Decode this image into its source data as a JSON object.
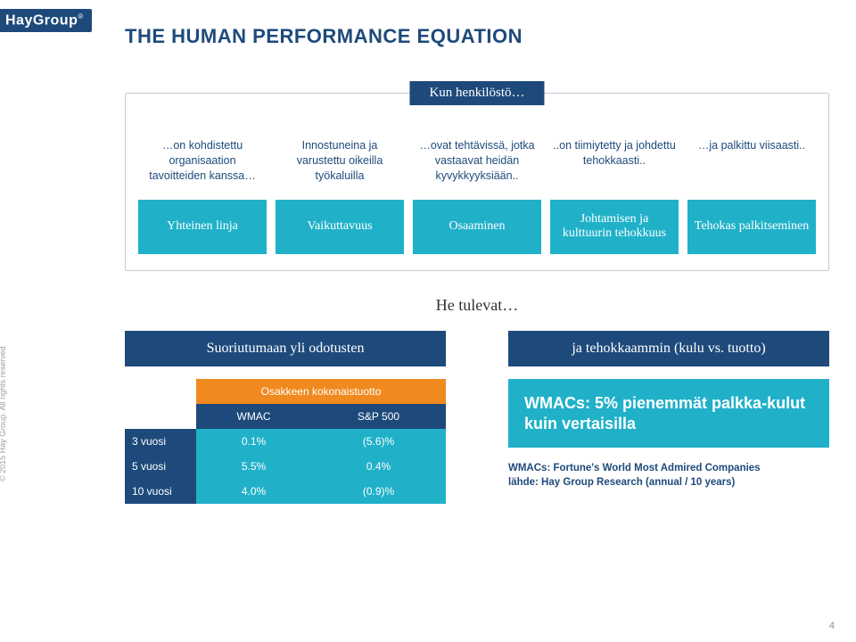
{
  "brand": {
    "name": "HayGroup",
    "reg": "®"
  },
  "copyright": "© 2015 Hay Group. All rights reserved",
  "title": "THE HUMAN PERFORMANCE EQUATION",
  "flow": {
    "title": "Kun henkilöstö…",
    "topRow": [
      "…on kohdistettu organisaation tavoitteiden kanssa…",
      "Innostuneina ja varustettu oikeilla työkaluilla",
      "…ovat tehtävissä, jotka vastaavat heidän kyvykkyyksiään..",
      "..on tiimiytetty ja johdettu tehokkaasti..",
      "…ja palkittu viisaasti.."
    ],
    "pills": [
      "Yhteinen linja",
      "Vaikuttavuus",
      "Osaaminen",
      "Johtamisen ja kulttuurin tehokkuus",
      "Tehokas palkitseminen"
    ]
  },
  "midline": "He tulevat…",
  "left": {
    "label": "Suoriutumaan yli odotusten",
    "tableTitle": "Osakkeen kokonaistuotto",
    "cols": [
      "",
      "WMAC",
      "S&P 500"
    ],
    "rows": [
      {
        "label": "3 vuosi",
        "c1": "0.1%",
        "c2": "(5.6)%"
      },
      {
        "label": "5 vuosi",
        "c1": "5.5%",
        "c2": "0.4%"
      },
      {
        "label": "10 vuosi",
        "c1": "4.0%",
        "c2": "(0.9)%"
      }
    ]
  },
  "right": {
    "label": "ja tehokkaammin (kulu vs. tuotto)",
    "box": "WMACs: 5% pienemmät palkka-kulut kuin vertaisilla",
    "foot1": "WMACs: Fortune's World Most Admired Companies",
    "foot2": "lähde: Hay Group Research (annual / 10 years)"
  },
  "pagenum": "4",
  "colors": {
    "blue": "#1e4a7b",
    "teal": "#20b1c9",
    "orange": "#f08a1f"
  }
}
